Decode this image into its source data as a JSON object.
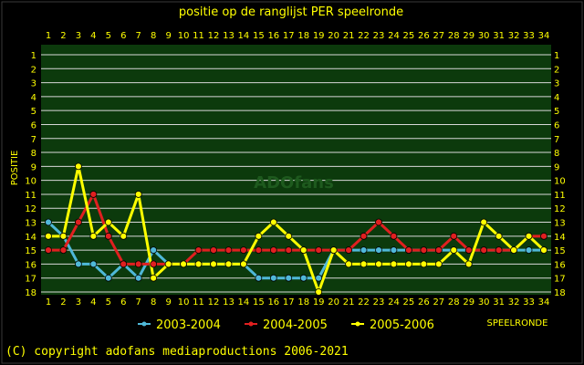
{
  "chart_data": {
    "type": "line",
    "title": "positie op de ranglijst PER speelronde",
    "ylabel": "POSITIE",
    "xlabel": "SPEELRONDE",
    "x": [
      1,
      2,
      3,
      4,
      5,
      6,
      7,
      8,
      9,
      10,
      11,
      12,
      13,
      14,
      15,
      16,
      17,
      18,
      19,
      20,
      21,
      22,
      23,
      24,
      25,
      26,
      27,
      28,
      29,
      30,
      31,
      32,
      33,
      34
    ],
    "xlim": [
      1,
      34
    ],
    "ylim": [
      1,
      18
    ],
    "y_inverted": true,
    "y_ticks": [
      1,
      2,
      3,
      4,
      5,
      6,
      7,
      8,
      9,
      10,
      11,
      12,
      13,
      14,
      15,
      16,
      17,
      18
    ],
    "grid": true,
    "legend_position": "bottom",
    "series": [
      {
        "name": "2003-2004",
        "color": "#4fb8d8",
        "values": [
          13,
          14,
          16,
          16,
          17,
          16,
          17,
          15,
          16,
          16,
          16,
          16,
          16,
          16,
          17,
          17,
          17,
          17,
          17,
          15,
          15,
          15,
          15,
          15,
          15,
          15,
          15,
          15,
          15,
          15,
          15,
          15,
          15,
          15
        ]
      },
      {
        "name": "2004-2005",
        "color": "#e02020",
        "values": [
          15,
          15,
          13,
          11,
          14,
          16,
          16,
          16,
          16,
          16,
          15,
          15,
          15,
          15,
          15,
          15,
          15,
          15,
          15,
          15,
          15,
          14,
          13,
          14,
          15,
          15,
          15,
          14,
          15,
          15,
          15,
          15,
          14,
          14
        ]
      },
      {
        "name": "2005-2006",
        "color": "#ffff00",
        "values": [
          14,
          14,
          9,
          14,
          13,
          14,
          11,
          17,
          16,
          16,
          16,
          16,
          16,
          16,
          14,
          13,
          14,
          15,
          18,
          15,
          16,
          16,
          16,
          16,
          16,
          16,
          16,
          15,
          16,
          13,
          14,
          15,
          14,
          15
        ]
      }
    ],
    "watermark": "ADOfans"
  },
  "footer": "(C) copyright adofans mediaproductions 2006-2021"
}
